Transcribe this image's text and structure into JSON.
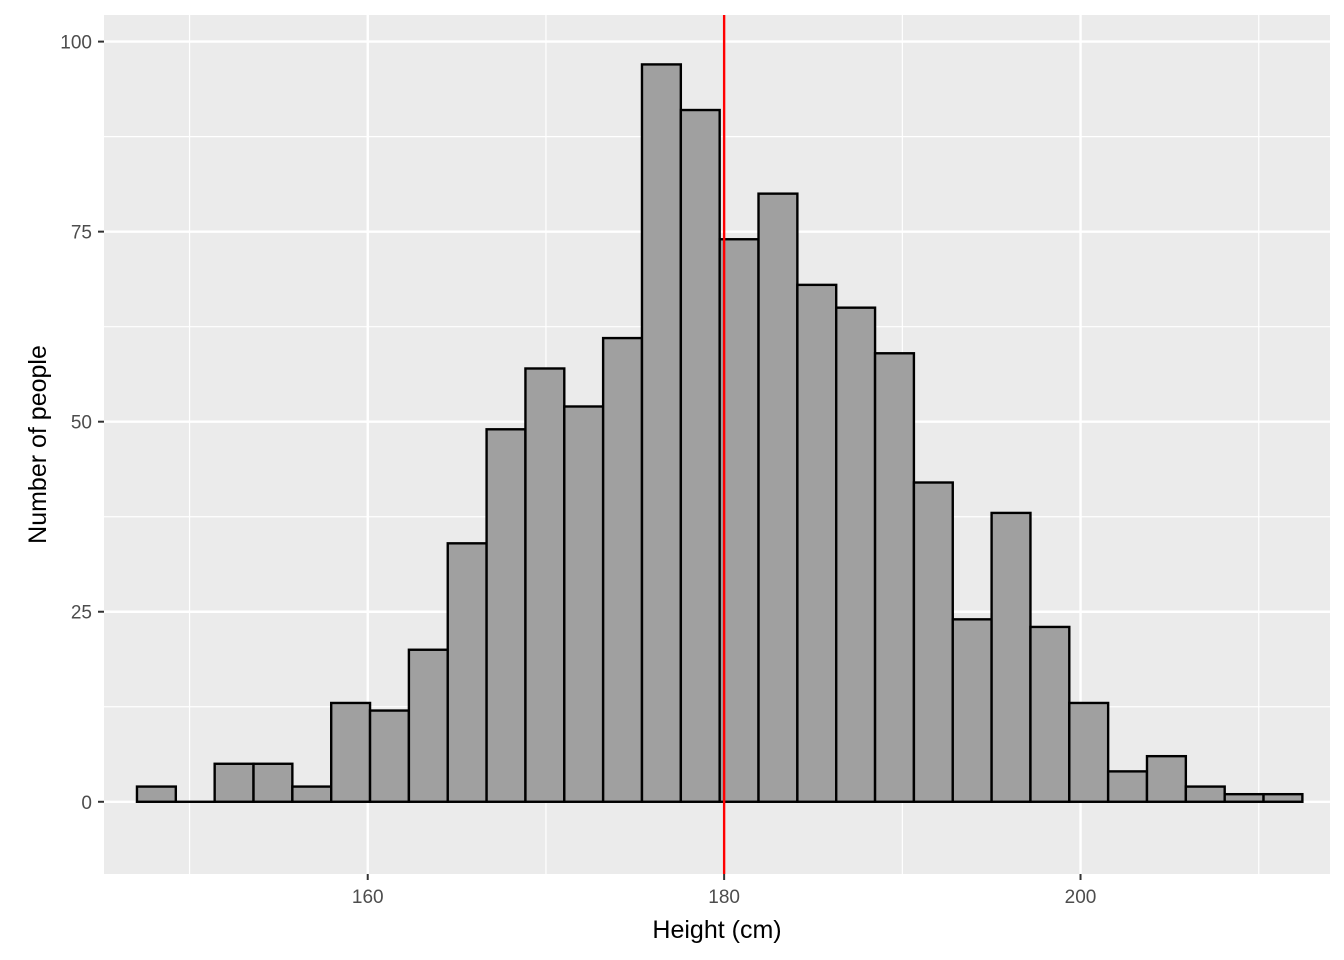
{
  "chart_data": {
    "type": "bar",
    "title": "",
    "xlabel": "Height (cm)",
    "ylabel": "Number of people",
    "xlim": [
      145.2,
      214.0
    ],
    "ylim": [
      -9.5,
      103.5
    ],
    "x_ticks": [
      160,
      180,
      200
    ],
    "y_ticks": [
      0,
      25,
      50,
      75,
      100
    ],
    "x_minor_grid": [
      150,
      170,
      190,
      210
    ],
    "y_minor_grid": [
      12.5,
      37.5,
      62.5,
      87.5
    ],
    "grid": true,
    "legend": "none",
    "bin_edges": [
      147.05,
      149.23,
      151.41,
      153.59,
      155.77,
      157.95,
      160.13,
      162.31,
      164.49,
      166.67,
      168.85,
      171.03,
      173.21,
      175.39,
      177.57,
      179.75,
      181.93,
      184.11,
      186.29,
      188.47,
      190.65,
      192.83,
      195.01,
      197.19,
      199.37,
      201.55,
      203.73,
      205.91,
      208.09,
      210.27,
      212.45
    ],
    "values": [
      2,
      0,
      5,
      5,
      2,
      13,
      12,
      20,
      34,
      49,
      57,
      52,
      61,
      97,
      91,
      74,
      80,
      68,
      65,
      59,
      42,
      24,
      38,
      23,
      13,
      4,
      6,
      2,
      1,
      1
    ],
    "vline": {
      "x": 180,
      "color": "#ff0000"
    },
    "colors": {
      "panel_background": "#ebebeb",
      "grid_major": "#ffffff",
      "bar_fill": "#a0a0a0",
      "bar_outline": "#000000",
      "tick_label": "#4d4d4d",
      "tick_mark": "#333333"
    }
  }
}
